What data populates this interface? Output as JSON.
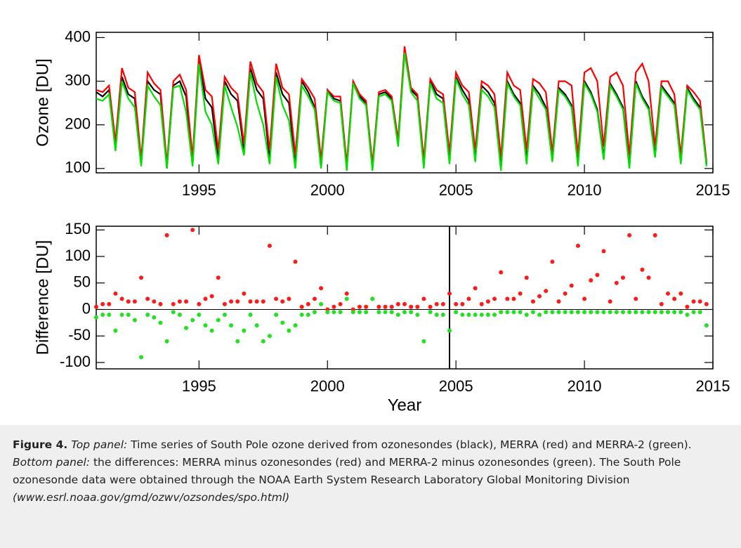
{
  "chart_data": [
    {
      "type": "line",
      "ylabel": "Ozone [DU]",
      "xlim": [
        1991,
        2015
      ],
      "xticks": [
        1995,
        2000,
        2005,
        2010,
        2015
      ],
      "ylim": [
        90,
        412
      ],
      "yticks": [
        100,
        200,
        300,
        400
      ],
      "x": [
        1991,
        1991.25,
        1991.5,
        1991.75,
        1992,
        1992.25,
        1992.5,
        1992.75,
        1993,
        1993.25,
        1993.5,
        1993.75,
        1994,
        1994.25,
        1994.5,
        1994.75,
        1995,
        1995.25,
        1995.5,
        1995.75,
        1996,
        1996.25,
        1996.5,
        1996.75,
        1997,
        1997.25,
        1997.5,
        1997.75,
        1998,
        1998.25,
        1998.5,
        1998.75,
        1999,
        1999.25,
        1999.5,
        1999.75,
        2000,
        2000.25,
        2000.5,
        2000.75,
        2001,
        2001.25,
        2001.5,
        2001.75,
        2002,
        2002.25,
        2002.5,
        2002.75,
        2003,
        2003.25,
        2003.5,
        2003.75,
        2004,
        2004.25,
        2004.5,
        2004.75,
        2005,
        2005.25,
        2005.5,
        2005.75,
        2006,
        2006.25,
        2006.5,
        2006.75,
        2007,
        2007.25,
        2007.5,
        2007.75,
        2008,
        2008.25,
        2008.5,
        2008.75,
        2009,
        2009.25,
        2009.5,
        2009.75,
        2010,
        2010.25,
        2010.5,
        2010.75,
        2011,
        2011.25,
        2011.5,
        2011.75,
        2012,
        2012.25,
        2012.5,
        2012.75,
        2013,
        2013.25,
        2013.5,
        2013.75,
        2014,
        2014.25,
        2014.5,
        2014.75
      ],
      "series": [
        {
          "color": "#000000",
          "values": [
            275,
            265,
            280,
            150,
            310,
            270,
            260,
            110,
            300,
            280,
            270,
            100,
            290,
            300,
            265,
            110,
            350,
            260,
            240,
            120,
            300,
            270,
            255,
            140,
            330,
            280,
            260,
            120,
            320,
            270,
            250,
            110,
            300,
            275,
            240,
            105,
            280,
            260,
            255,
            100,
            300,
            265,
            250,
            100,
            270,
            275,
            260,
            160,
            370,
            280,
            265,
            110,
            300,
            270,
            260,
            120,
            310,
            280,
            255,
            125,
            290,
            275,
            250,
            100,
            300,
            270,
            250,
            120,
            290,
            270,
            240,
            120,
            285,
            270,
            245,
            110,
            300,
            275,
            235,
            125,
            295,
            270,
            240,
            105,
            300,
            265,
            240,
            130,
            290,
            270,
            250,
            115,
            285,
            260,
            240,
            110
          ]
        },
        {
          "color": "#ff0000",
          "values": [
            280,
            275,
            290,
            160,
            330,
            285,
            275,
            120,
            320,
            295,
            280,
            110,
            300,
            315,
            280,
            125,
            360,
            280,
            265,
            140,
            310,
            285,
            270,
            155,
            345,
            295,
            275,
            140,
            340,
            285,
            270,
            130,
            305,
            285,
            260,
            120,
            280,
            265,
            265,
            110,
            300,
            270,
            255,
            110,
            275,
            280,
            265,
            165,
            380,
            285,
            270,
            120,
            305,
            280,
            270,
            135,
            320,
            290,
            275,
            140,
            300,
            290,
            270,
            125,
            320,
            290,
            280,
            140,
            305,
            295,
            275,
            135,
            300,
            300,
            290,
            130,
            320,
            330,
            300,
            150,
            310,
            320,
            290,
            130,
            320,
            340,
            300,
            150,
            300,
            300,
            270,
            130,
            290,
            275,
            255,
            115
          ]
        },
        {
          "color": "#00e000",
          "values": [
            260,
            255,
            270,
            140,
            300,
            260,
            240,
            105,
            290,
            265,
            245,
            100,
            285,
            290,
            230,
            105,
            340,
            230,
            200,
            110,
            290,
            240,
            195,
            130,
            320,
            250,
            200,
            110,
            310,
            245,
            210,
            100,
            290,
            265,
            235,
            100,
            275,
            255,
            250,
            95,
            295,
            260,
            245,
            95,
            265,
            270,
            255,
            150,
            365,
            275,
            255,
            100,
            295,
            260,
            250,
            110,
            305,
            270,
            245,
            115,
            280,
            265,
            240,
            95,
            295,
            265,
            245,
            110,
            285,
            260,
            235,
            115,
            280,
            265,
            240,
            105,
            295,
            270,
            230,
            120,
            290,
            265,
            235,
            100,
            295,
            260,
            235,
            125,
            285,
            265,
            245,
            110,
            280,
            255,
            235,
            105
          ]
        }
      ]
    },
    {
      "type": "scatter",
      "xlabel": "Year",
      "ylabel": "Difference [DU]",
      "xlim": [
        1991,
        2015
      ],
      "xticks": [
        1995,
        2000,
        2005,
        2010,
        2015
      ],
      "ylim": [
        -112,
        157
      ],
      "yticks": [
        -100,
        -50,
        0,
        50,
        100,
        150
      ],
      "hline": 0,
      "vline": 2004.75,
      "x": [
        1991,
        1991.25,
        1991.5,
        1991.75,
        1992,
        1992.25,
        1992.5,
        1992.75,
        1993,
        1993.25,
        1993.5,
        1993.75,
        1994,
        1994.25,
        1994.5,
        1994.75,
        1995,
        1995.25,
        1995.5,
        1995.75,
        1996,
        1996.25,
        1996.5,
        1996.75,
        1997,
        1997.25,
        1997.5,
        1997.75,
        1998,
        1998.25,
        1998.5,
        1998.75,
        1999,
        1999.25,
        1999.5,
        1999.75,
        2000,
        2000.25,
        2000.5,
        2000.75,
        2001,
        2001.25,
        2001.5,
        2001.75,
        2002,
        2002.25,
        2002.5,
        2002.75,
        2003,
        2003.25,
        2003.5,
        2003.75,
        2004,
        2004.25,
        2004.5,
        2004.75,
        2005,
        2005.25,
        2005.5,
        2005.75,
        2006,
        2006.25,
        2006.5,
        2006.75,
        2007,
        2007.25,
        2007.5,
        2007.75,
        2008,
        2008.25,
        2008.5,
        2008.75,
        2009,
        2009.25,
        2009.5,
        2009.75,
        2010,
        2010.25,
        2010.5,
        2010.75,
        2011,
        2011.25,
        2011.5,
        2011.75,
        2012,
        2012.25,
        2012.5,
        2012.75,
        2013,
        2013.25,
        2013.5,
        2013.75,
        2014,
        2014.25,
        2014.5,
        2014.75
      ],
      "series": [
        {
          "color": "#ff1a1a",
          "values": [
            5,
            10,
            10,
            30,
            20,
            15,
            15,
            60,
            20,
            15,
            10,
            140,
            10,
            15,
            15,
            150,
            10,
            20,
            25,
            60,
            10,
            15,
            15,
            30,
            15,
            15,
            15,
            120,
            20,
            15,
            20,
            90,
            5,
            10,
            20,
            40,
            0,
            5,
            10,
            30,
            0,
            5,
            5,
            20,
            5,
            5,
            5,
            10,
            10,
            5,
            5,
            20,
            5,
            10,
            10,
            30,
            10,
            10,
            20,
            40,
            10,
            15,
            20,
            70,
            20,
            20,
            30,
            60,
            15,
            25,
            35,
            90,
            15,
            30,
            45,
            120,
            20,
            55,
            65,
            110,
            15,
            50,
            60,
            140,
            20,
            75,
            60,
            140,
            10,
            30,
            20,
            30,
            5,
            15,
            15,
            10
          ]
        },
        {
          "color": "#22e022",
          "values": [
            -15,
            -10,
            -10,
            -40,
            -10,
            -10,
            -20,
            -90,
            -10,
            -15,
            -25,
            -60,
            -5,
            -10,
            -35,
            -20,
            -10,
            -30,
            -40,
            -20,
            -10,
            -30,
            -60,
            -40,
            -10,
            -30,
            -60,
            -50,
            -10,
            -25,
            -40,
            -30,
            -10,
            -10,
            -5,
            10,
            -5,
            -5,
            -5,
            20,
            -5,
            -5,
            -5,
            20,
            -5,
            -5,
            -5,
            -10,
            -5,
            -5,
            -10,
            -60,
            -5,
            -10,
            -10,
            -40,
            -5,
            -10,
            -10,
            -10,
            -10,
            -10,
            -10,
            -5,
            -5,
            -5,
            -5,
            -10,
            -5,
            -10,
            -5,
            -5,
            -5,
            -5,
            -5,
            -5,
            -5,
            -5,
            -5,
            -5,
            -5,
            -5,
            -5,
            -5,
            -5,
            -5,
            -5,
            -5,
            -5,
            -5,
            -5,
            -5,
            -10,
            -5,
            -5,
            -30
          ]
        }
      ]
    }
  ],
  "caption": {
    "label": "Figure 4.",
    "top_label": "Top panel:",
    "top_text": "Time series of South Pole ozone derived from ozonesondes (black), MERRA (red) and MERRA-2 (green).",
    "bottom_label": "Bottom panel:",
    "bottom_text": "the differences: MERRA minus ozonesondes (red) and MERRA-2 minus ozonesondes (green). The South Pole ozonesonde data were obtained through the NOAA Earth System Research Laboratory Global Monitoring Division",
    "url": "(www.esrl.noaa.gov/gmd/ozwv/ozsondes/spo.html)"
  }
}
